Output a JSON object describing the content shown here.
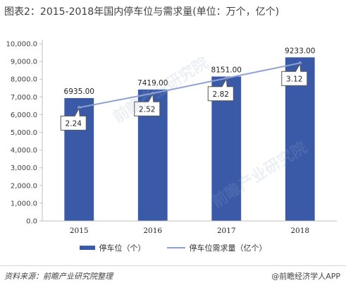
{
  "title": "图表2：2015-2018年国内停车位与需求量(单位：万个，亿个)",
  "chart_data": {
    "type": "bar",
    "categories": [
      "2015",
      "2016",
      "2017",
      "2018"
    ],
    "series": [
      {
        "name": "停车位（个）",
        "type": "bar",
        "color": "#3a5aa8",
        "values": [
          6935.0,
          7419.0,
          8151.0,
          9233.0
        ],
        "labels": [
          "6935.00",
          "7419.00",
          "8151.00",
          "9233.00"
        ]
      },
      {
        "name": "停车位需求量（亿个）",
        "type": "line",
        "color": "#8ea1d2",
        "values": [
          2.24,
          2.52,
          2.82,
          3.12
        ],
        "labels": [
          "2.24",
          "2.52",
          "2.82",
          "3.12"
        ]
      }
    ],
    "y_ticks": [
      "0.0",
      "1,000.0",
      "2,000.0",
      "3,000.0",
      "4,000.0",
      "5,000.0",
      "6,000.0",
      "7,000.0",
      "8,000.0",
      "9,000.0",
      "10,000.0"
    ],
    "ylim": [
      0,
      10000
    ],
    "line_ylim": [
      0,
      3.5
    ],
    "grid": false,
    "legend_position": "bottom"
  },
  "source": "资料来源：前瞻产业研究院整理",
  "credit": "@前瞻经济学人APP",
  "watermark": "前瞻产业研究院"
}
